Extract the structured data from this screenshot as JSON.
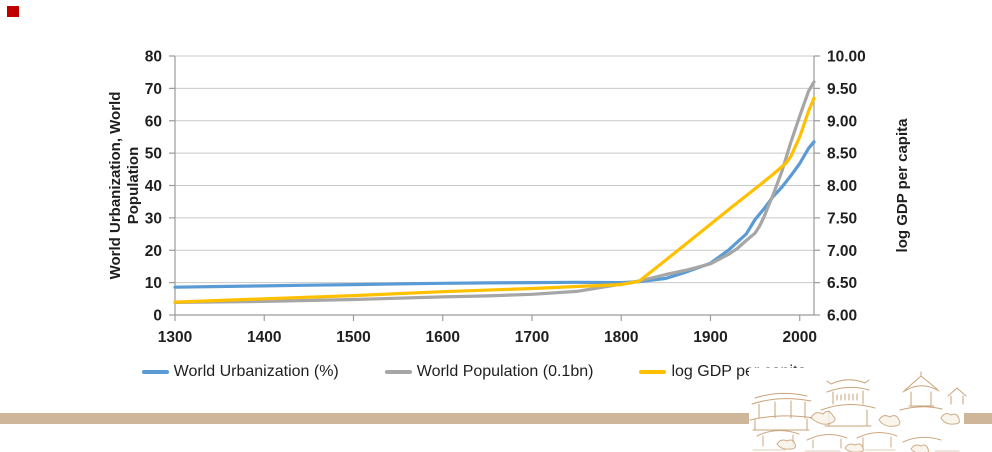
{
  "decor": {
    "red_square_color": "#c00000",
    "footer_bar_color": "#cdb69a",
    "artwork_stroke": "#c49a6c"
  },
  "chart_data": {
    "type": "line",
    "title": "",
    "grid": true,
    "legend_position": "bottom",
    "x_range": [
      1300,
      2016
    ],
    "x_ticks": [
      1300,
      1400,
      1500,
      1600,
      1700,
      1800,
      1900,
      2000
    ],
    "left_axis": {
      "title_lines": [
        "World Urbanization, World",
        "Population"
      ],
      "range": [
        0,
        80
      ],
      "ticks": [
        0,
        10,
        20,
        30,
        40,
        50,
        60,
        70,
        80
      ]
    },
    "right_axis": {
      "title": "log GDP per capita",
      "range": [
        6,
        10
      ],
      "ticks": [
        6.0,
        6.5,
        7.0,
        7.5,
        8.0,
        8.5,
        9.0,
        9.5,
        10.0
      ],
      "tick_labels": [
        "6.00",
        "6.50",
        "7.00",
        "7.50",
        "8.00",
        "8.50",
        "9.00",
        "9.50",
        "10.00"
      ]
    },
    "series": [
      {
        "name": "World Urbanization (%)",
        "axis": "left",
        "color": "#5B9BD5",
        "points": [
          [
            1300,
            8.6
          ],
          [
            1350,
            8.8
          ],
          [
            1400,
            9.0
          ],
          [
            1450,
            9.2
          ],
          [
            1500,
            9.4
          ],
          [
            1550,
            9.6
          ],
          [
            1600,
            9.8
          ],
          [
            1650,
            9.9
          ],
          [
            1700,
            10.0
          ],
          [
            1750,
            10.1
          ],
          [
            1800,
            10.0
          ],
          [
            1820,
            10.3
          ],
          [
            1850,
            11.3
          ],
          [
            1870,
            13.0
          ],
          [
            1900,
            16.0
          ],
          [
            1920,
            20.0
          ],
          [
            1930,
            22.5
          ],
          [
            1940,
            25.0
          ],
          [
            1950,
            29.5
          ],
          [
            1960,
            32.8
          ],
          [
            1970,
            36.5
          ],
          [
            1980,
            39.5
          ],
          [
            1990,
            43.0
          ],
          [
            2000,
            46.8
          ],
          [
            2010,
            51.5
          ],
          [
            2016,
            53.5
          ]
        ]
      },
      {
        "name": "World Population (0.1bn)",
        "axis": "left",
        "color": "#A6A6A6",
        "points": [
          [
            1300,
            3.9
          ],
          [
            1400,
            4.2
          ],
          [
            1500,
            4.8
          ],
          [
            1600,
            5.6
          ],
          [
            1650,
            5.9
          ],
          [
            1700,
            6.4
          ],
          [
            1750,
            7.3
          ],
          [
            1800,
            9.5
          ],
          [
            1820,
            10.5
          ],
          [
            1850,
            12.5
          ],
          [
            1875,
            14.0
          ],
          [
            1900,
            15.8
          ],
          [
            1920,
            18.7
          ],
          [
            1930,
            20.5
          ],
          [
            1940,
            23.0
          ],
          [
            1950,
            25.3
          ],
          [
            1955,
            27.5
          ],
          [
            1960,
            30.3
          ],
          [
            1970,
            37.0
          ],
          [
            1980,
            44.4
          ],
          [
            1990,
            53.3
          ],
          [
            2000,
            61.4
          ],
          [
            2010,
            69.2
          ],
          [
            2016,
            72.0
          ]
        ]
      },
      {
        "name": "log GDP per capita",
        "axis": "right",
        "color": "#FFC000",
        "points": [
          [
            1300,
            6.2
          ],
          [
            1400,
            6.25
          ],
          [
            1500,
            6.3
          ],
          [
            1600,
            6.36
          ],
          [
            1700,
            6.41
          ],
          [
            1750,
            6.44
          ],
          [
            1800,
            6.47
          ],
          [
            1820,
            6.52
          ],
          [
            1850,
            6.85
          ],
          [
            1900,
            7.4
          ],
          [
            1925,
            7.68
          ],
          [
            1950,
            7.95
          ],
          [
            1970,
            8.17
          ],
          [
            1985,
            8.35
          ],
          [
            1990,
            8.45
          ],
          [
            2000,
            8.75
          ],
          [
            2010,
            9.15
          ],
          [
            2016,
            9.35
          ]
        ]
      }
    ]
  }
}
